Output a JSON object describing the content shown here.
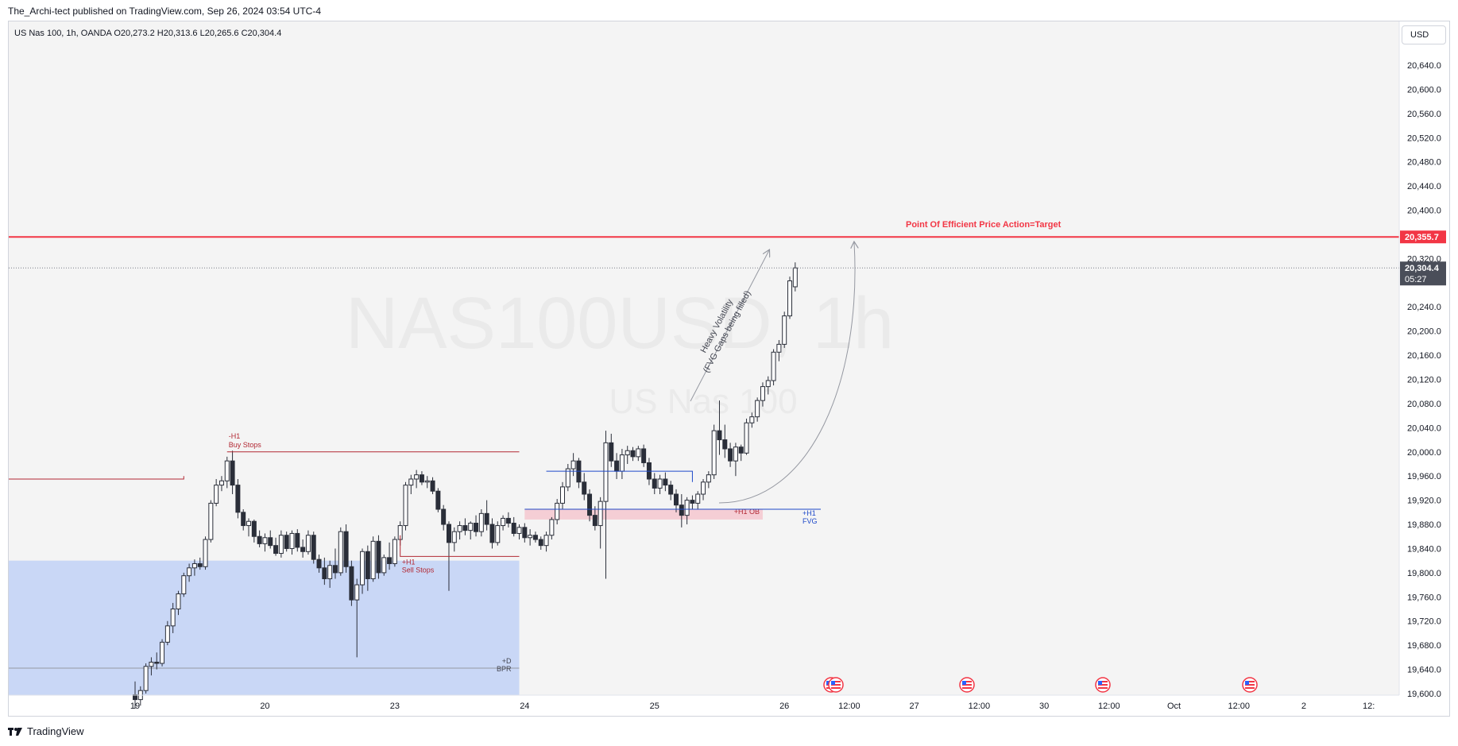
{
  "header": {
    "published": "The_Archi-tect published on TradingView.com, Sep 26, 2024 03:54 UTC-4",
    "legend": "US Nas 100, 1h, OANDA  O20,273.2  H20,313.6  L20,265.6  C20,304.4"
  },
  "watermark": {
    "symbol": "NAS100USD, 1h",
    "name": "US Nas 100"
  },
  "currency_button": "USD",
  "footer": {
    "brand": "TradingView"
  },
  "colors": {
    "background": "#f4f4f4",
    "bull": "#ffffff",
    "bear": "#2a2e39",
    "target_line": "#f23645",
    "zone_blue": "#c9d7f6",
    "ob_pink": "#f5c7cf",
    "fvg_blue": "#1e49c9",
    "liquidity_red": "#b22833"
  },
  "chart_data": {
    "type": "candlestick",
    "symbol": "US Nas 100",
    "interval": "1h",
    "broker": "OANDA",
    "ohlc_last": {
      "open": 20273.2,
      "high": 20313.6,
      "low": 20265.6,
      "close": 20304.4
    },
    "y_axis": {
      "min": 19600,
      "max": 20680,
      "ticks": [
        "20,640.0",
        "20,600.0",
        "20,560.0",
        "20,520.0",
        "20,480.0",
        "20,440.0",
        "20,400.0",
        "20,320.0",
        "20,240.0",
        "20,200.0",
        "20,160.0",
        "20,120.0",
        "20,080.0",
        "20,040.0",
        "20,000.0",
        "19,960.0",
        "19,920.0",
        "19,880.0",
        "19,840.0",
        "19,800.0",
        "19,760.0",
        "19,720.0",
        "19,680.0",
        "19,640.0",
        "19,600.0"
      ],
      "tick_values": [
        20640,
        20600,
        20560,
        20520,
        20480,
        20440,
        20400,
        20320,
        20240,
        20200,
        20160,
        20120,
        20080,
        20040,
        20000,
        19960,
        19920,
        19880,
        19840,
        19800,
        19760,
        19720,
        19680,
        19640,
        19600
      ]
    },
    "x_axis": {
      "ticks": [
        "19",
        "20",
        "23",
        "24",
        "25",
        "26",
        "12:00",
        "27",
        "12:00",
        "30",
        "12:00",
        "Oct",
        "12:00",
        "2",
        "12:"
      ],
      "tick_bar_index": [
        0,
        24,
        48,
        72,
        96,
        120,
        132,
        144,
        156,
        168,
        180,
        192,
        204,
        216,
        228
      ]
    },
    "price_labels": [
      {
        "text": "20,355.7",
        "value": 20355.7,
        "kind": "target"
      },
      {
        "text": "20,304.4",
        "value": 20304.4,
        "kind": "last"
      },
      {
        "text": "05:27",
        "value": 20304.4,
        "kind": "countdown"
      }
    ],
    "candles": [
      [
        19598,
        19620,
        19575,
        19590
      ],
      [
        19590,
        19612,
        19580,
        19605
      ],
      [
        19605,
        19650,
        19600,
        19645
      ],
      [
        19645,
        19660,
        19630,
        19652
      ],
      [
        19652,
        19668,
        19640,
        19650
      ],
      [
        19650,
        19690,
        19645,
        19685
      ],
      [
        19685,
        19720,
        19680,
        19712
      ],
      [
        19712,
        19750,
        19700,
        19740
      ],
      [
        19740,
        19770,
        19730,
        19765
      ],
      [
        19765,
        19800,
        19760,
        19795
      ],
      [
        19795,
        19815,
        19785,
        19808
      ],
      [
        19808,
        19822,
        19795,
        19815
      ],
      [
        19815,
        19825,
        19805,
        19810
      ],
      [
        19810,
        19860,
        19805,
        19855
      ],
      [
        19855,
        19920,
        19850,
        19915
      ],
      [
        19915,
        19955,
        19910,
        19945
      ],
      [
        19945,
        19960,
        19935,
        19952
      ],
      [
        19952,
        19992,
        19940,
        19985
      ],
      [
        19985,
        20002,
        19930,
        19945
      ],
      [
        19945,
        19955,
        19890,
        19900
      ],
      [
        19900,
        19905,
        19870,
        19878
      ],
      [
        19878,
        19890,
        19860,
        19885
      ],
      [
        19885,
        19888,
        19850,
        19860
      ],
      [
        19860,
        19870,
        19842,
        19848
      ],
      [
        19848,
        19865,
        19835,
        19858
      ],
      [
        19858,
        19870,
        19840,
        19845
      ],
      [
        19845,
        19858,
        19828,
        19832
      ],
      [
        19832,
        19870,
        19825,
        19862
      ],
      [
        19862,
        19868,
        19835,
        19840
      ],
      [
        19840,
        19870,
        19830,
        19865
      ],
      [
        19865,
        19872,
        19835,
        19842
      ],
      [
        19842,
        19855,
        19825,
        19835
      ],
      [
        19835,
        19870,
        19830,
        19862
      ],
      [
        19862,
        19868,
        19815,
        19822
      ],
      [
        19822,
        19830,
        19800,
        19808
      ],
      [
        19808,
        19825,
        19780,
        19790
      ],
      [
        19790,
        19820,
        19775,
        19812
      ],
      [
        19812,
        19840,
        19790,
        19800
      ],
      [
        19800,
        19875,
        19795,
        19868
      ],
      [
        19868,
        19880,
        19800,
        19810
      ],
      [
        19810,
        19820,
        19745,
        19755
      ],
      [
        19755,
        19790,
        19660,
        19780
      ],
      [
        19780,
        19840,
        19765,
        19835
      ],
      [
        19835,
        19845,
        19770,
        19790
      ],
      [
        19790,
        19860,
        19785,
        19852
      ],
      [
        19852,
        19862,
        19790,
        19800
      ],
      [
        19800,
        19830,
        19795,
        19825
      ],
      [
        19825,
        19850,
        19805,
        19815
      ],
      [
        19815,
        19860,
        19810,
        19855
      ],
      [
        19855,
        19885,
        19845,
        19878
      ],
      [
        19878,
        19950,
        19870,
        19945
      ],
      [
        19945,
        19962,
        19930,
        19955
      ],
      [
        19955,
        19970,
        19940,
        19962
      ],
      [
        19962,
        19968,
        19945,
        19950
      ],
      [
        19950,
        19960,
        19940,
        19952
      ],
      [
        19952,
        19958,
        19930,
        19935
      ],
      [
        19935,
        19940,
        19900,
        19905
      ],
      [
        19905,
        19912,
        19870,
        19880
      ],
      [
        19880,
        19885,
        19770,
        19850
      ],
      [
        19850,
        19875,
        19835,
        19868
      ],
      [
        19868,
        19885,
        19855,
        19878
      ],
      [
        19878,
        19890,
        19862,
        19870
      ],
      [
        19870,
        19885,
        19855,
        19882
      ],
      [
        19882,
        19895,
        19860,
        19868
      ],
      [
        19868,
        19905,
        19860,
        19898
      ],
      [
        19898,
        19920,
        19870,
        19880
      ],
      [
        19880,
        19890,
        19840,
        19850
      ],
      [
        19850,
        19885,
        19845,
        19878
      ],
      [
        19878,
        19895,
        19870,
        19890
      ],
      [
        19890,
        19900,
        19875,
        19882
      ],
      [
        19882,
        19892,
        19860,
        19865
      ],
      [
        19865,
        19880,
        19855,
        19875
      ],
      [
        19875,
        19882,
        19850,
        19858
      ],
      [
        19858,
        19872,
        19845,
        19862
      ],
      [
        19862,
        19868,
        19850,
        19855
      ],
      [
        19855,
        19860,
        19838,
        19845
      ],
      [
        19845,
        19868,
        19835,
        19862
      ],
      [
        19862,
        19892,
        19855,
        19888
      ],
      [
        19888,
        19922,
        19880,
        19915
      ],
      [
        19915,
        19950,
        19905,
        19942
      ],
      [
        19942,
        19980,
        19935,
        19972
      ],
      [
        19972,
        19998,
        19960,
        19985
      ],
      [
        19985,
        19990,
        19940,
        19950
      ],
      [
        19950,
        19965,
        19920,
        19930
      ],
      [
        19930,
        19938,
        19885,
        19895
      ],
      [
        19895,
        19910,
        19870,
        19878
      ],
      [
        19878,
        19925,
        19840,
        19918
      ],
      [
        19918,
        20035,
        19790,
        20015
      ],
      [
        20015,
        20030,
        19975,
        19985
      ],
      [
        19985,
        19998,
        19955,
        19968
      ],
      [
        19968,
        20005,
        19955,
        19995
      ],
      [
        19995,
        20010,
        19980,
        20002
      ],
      [
        20002,
        20008,
        19985,
        19992
      ],
      [
        19992,
        20010,
        19985,
        20005
      ],
      [
        20005,
        20012,
        19975,
        19982
      ],
      [
        19982,
        19990,
        19945,
        19955
      ],
      [
        19955,
        19965,
        19930,
        19940
      ],
      [
        19940,
        19962,
        19930,
        19955
      ],
      [
        19955,
        19966,
        19935,
        19945
      ],
      [
        19945,
        19952,
        19920,
        19930
      ],
      [
        19930,
        19938,
        19900,
        19912
      ],
      [
        19912,
        19930,
        19875,
        19895
      ],
      [
        19895,
        19925,
        19880,
        19920
      ],
      [
        19920,
        19928,
        19905,
        19915
      ],
      [
        19915,
        19935,
        19905,
        19930
      ],
      [
        19930,
        19955,
        19920,
        19950
      ],
      [
        19950,
        19968,
        19940,
        19962
      ],
      [
        19962,
        20045,
        19955,
        20035
      ],
      [
        20035,
        20085,
        19995,
        20020
      ],
      [
        20020,
        20045,
        19990,
        20005
      ],
      [
        20005,
        20015,
        19975,
        19985
      ],
      [
        19985,
        20015,
        19960,
        20008
      ],
      [
        20008,
        20012,
        19985,
        19998
      ],
      [
        19998,
        20055,
        19995,
        20048
      ],
      [
        20048,
        20065,
        20040,
        20058
      ],
      [
        20058,
        20090,
        20050,
        20085
      ],
      [
        20085,
        20115,
        20075,
        20108
      ],
      [
        20108,
        20125,
        20095,
        20118
      ],
      [
        20118,
        20170,
        20110,
        20165
      ],
      [
        20165,
        20185,
        20150,
        20178
      ],
      [
        20178,
        20232,
        20172,
        20225
      ],
      [
        20225,
        20290,
        20220,
        20283
      ],
      [
        20273.2,
        20313.6,
        20265.6,
        20304.4
      ]
    ],
    "levels": [
      {
        "name": "Point Of Efficient Price Action=Target",
        "value": 20355.7
      },
      {
        "name": "-H1 Buy Stops",
        "value": 20000
      },
      {
        "name": "+H1 Sell Stops",
        "value": 19827
      },
      {
        "name": "+H1 OB",
        "value_range": [
          19888,
          19905
        ]
      },
      {
        "name": "+H1 FVG",
        "value": 19905
      },
      {
        "name": "+D BPR",
        "value": 19642
      }
    ],
    "annotations": {
      "target": "Point Of Efficient Price Action=Target",
      "buy_stops": [
        "-H1",
        "Buy Stops"
      ],
      "sell_stops": [
        "+H1",
        "Sell Stops"
      ],
      "ob": "+H1 OB",
      "fvg": [
        "+H1",
        "FVG"
      ],
      "bpr": [
        "+D",
        "BPR"
      ],
      "volatility": [
        "Heavy Volatility",
        "(FVG Gaps being filled)"
      ]
    },
    "grid": false,
    "event_flags": 6
  }
}
